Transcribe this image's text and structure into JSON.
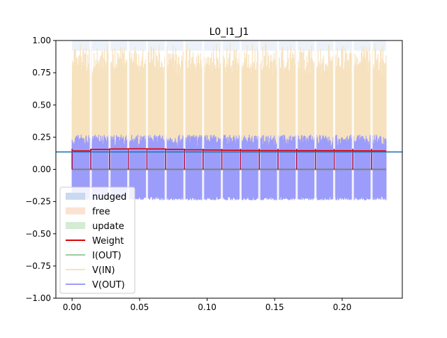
{
  "chart_data": {
    "type": "line",
    "title": "L0_I1_J1",
    "xlim": [
      -0.012,
      0.2445
    ],
    "ylim": [
      -1.0,
      1.0
    ],
    "x_ticks": [
      0.0,
      0.05,
      0.1,
      0.15,
      0.2
    ],
    "x_tick_labels": [
      "0.00",
      "0.05",
      "0.10",
      "0.15",
      "0.20"
    ],
    "y_ticks": [
      1.0,
      0.75,
      0.5,
      0.25,
      0.0,
      -0.25,
      -0.5,
      -0.75,
      -1.0
    ],
    "y_tick_labels": [
      "1.00",
      "0.75",
      "0.50",
      "0.25",
      "0.00",
      "−0.25",
      "−0.50",
      "−0.75",
      "−1.00"
    ],
    "grid": false,
    "legend_position": "lower-left",
    "colors": {
      "nudged": "#c9d9f0",
      "free": "#fbe3d2",
      "update": "#d4ebd4",
      "weight": "#dd0000",
      "i_out": "#9ccc9c",
      "v_in": "#f7e2bf",
      "v_out": "#9c9cfa",
      "hline": "#1f77b4"
    },
    "series": [
      {
        "name": "nudged",
        "kind": "shaded band"
      },
      {
        "name": "free",
        "kind": "shaded band"
      },
      {
        "name": "update",
        "kind": "shaded band"
      },
      {
        "name": "Weight",
        "kind": "step line",
        "x": [
          0.0,
          0.0139,
          0.0139,
          0.0277,
          0.0277,
          0.0416,
          0.0416,
          0.0555,
          0.0555,
          0.0693,
          0.0693,
          0.0832,
          0.0832,
          0.0971,
          0.0971,
          0.1109,
          0.1109,
          0.1248,
          0.1248,
          0.1387,
          0.1387,
          0.1525,
          0.1525,
          0.1664,
          0.1664,
          0.1803,
          0.1803,
          0.1941,
          0.1941,
          0.208,
          0.208,
          0.2219,
          0.2219,
          0.2325
        ],
        "y": [
          0.143,
          0.143,
          0.155,
          0.155,
          0.158,
          0.158,
          0.16,
          0.16,
          0.158,
          0.158,
          0.155,
          0.155,
          0.152,
          0.152,
          0.15,
          0.15,
          0.148,
          0.148,
          0.147,
          0.147,
          0.146,
          0.146,
          0.146,
          0.146,
          0.145,
          0.145,
          0.145,
          0.145,
          0.145,
          0.145,
          0.144,
          0.144,
          0.143,
          0.143
        ]
      },
      {
        "name": "I(OUT)",
        "kind": "line",
        "approx_value": 0.0
      },
      {
        "name": "V(IN)",
        "kind": "oscillating signal",
        "approx_range": [
          0.0,
          0.99
        ]
      },
      {
        "name": "V(OUT)",
        "kind": "oscillating signal",
        "approx_range": [
          -0.24,
          0.27
        ]
      }
    ],
    "hline": {
      "y": 0.135
    },
    "cycle_period": 0.01386,
    "cycles": 17,
    "x_end": 0.2325
  }
}
